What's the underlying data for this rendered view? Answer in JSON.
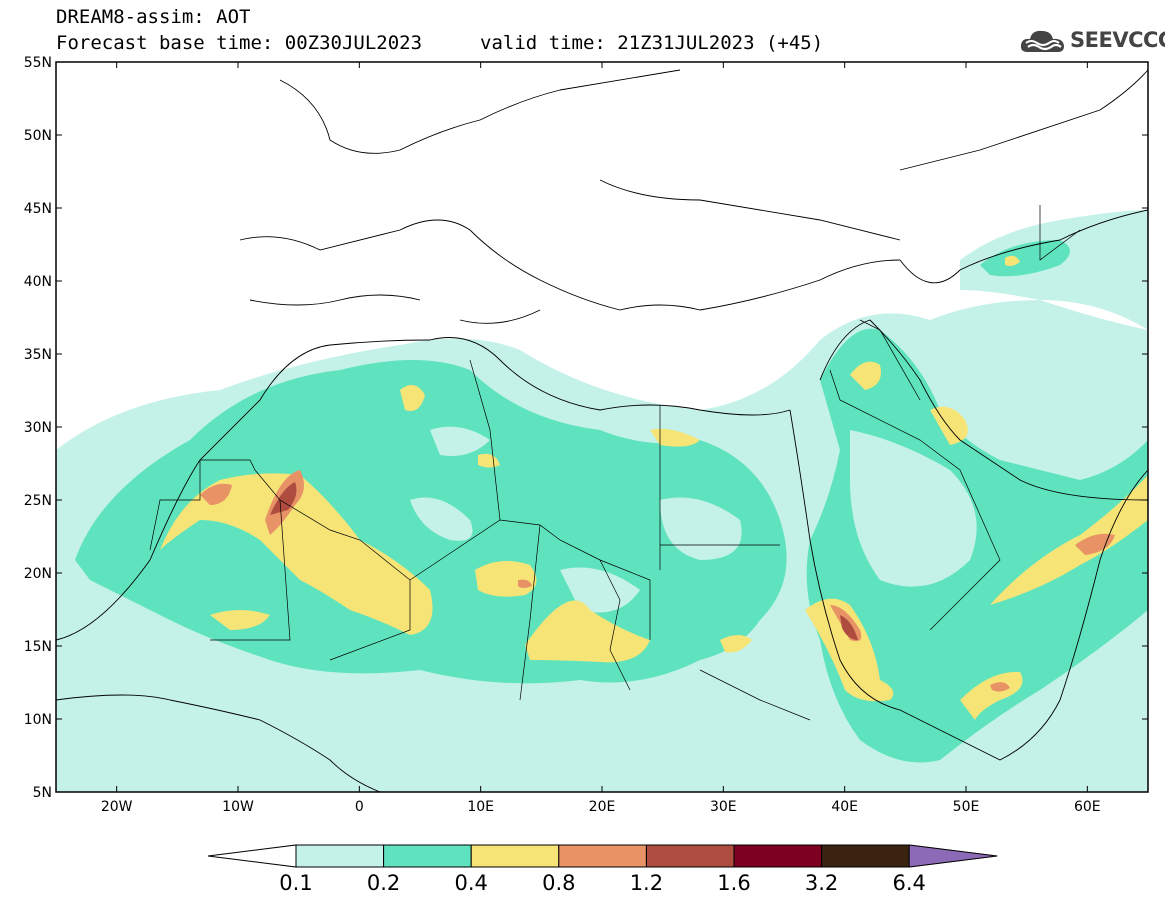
{
  "header": {
    "title": "DREAM8-assim: AOT",
    "base_time": "Forecast base time: 00Z30JUL2023",
    "valid_time": "valid time: 21Z31JUL2023 (+45)"
  },
  "logo": {
    "text": "SEEVCCC",
    "icon": "cloud-logo-icon"
  },
  "map": {
    "lat_labels": [
      "55N",
      "50N",
      "45N",
      "40N",
      "35N",
      "30N",
      "25N",
      "20N",
      "15N",
      "10N",
      "5N"
    ],
    "lon_labels": [
      "20W",
      "10W",
      "0",
      "10E",
      "20E",
      "30E",
      "40E",
      "50E",
      "60E"
    ],
    "lat_range": [
      5,
      55
    ],
    "lon_range": [
      -25,
      65
    ]
  },
  "legend": {
    "values": [
      "0.1",
      "0.2",
      "0.4",
      "0.8",
      "1.2",
      "1.6",
      "3.2",
      "6.4"
    ],
    "colors": [
      "#ffffff",
      "#c4f2e8",
      "#5fe3be",
      "#f6e476",
      "#e89366",
      "#ad4c3f",
      "#7e0020",
      "#3a2410",
      "#8d6ab7"
    ]
  }
}
